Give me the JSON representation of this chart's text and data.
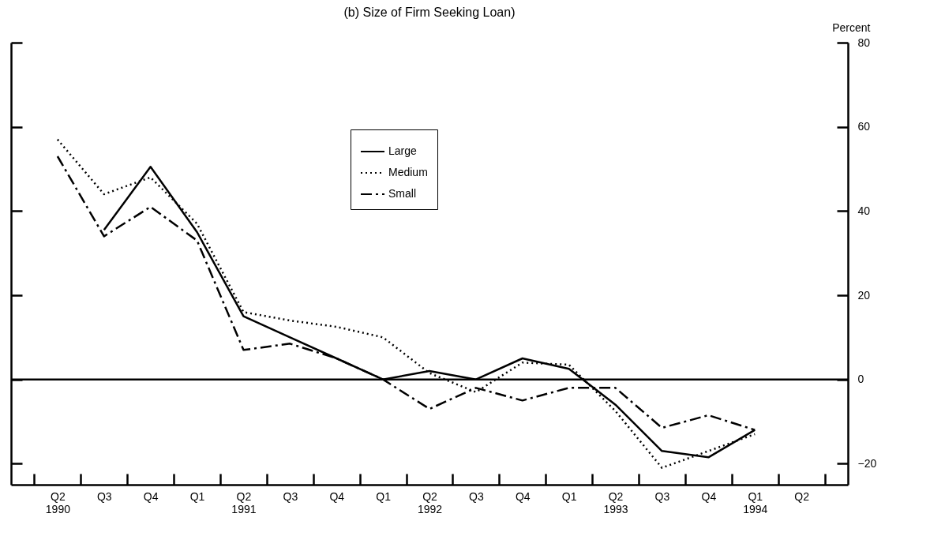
{
  "chart_data": {
    "type": "line",
    "title": "(b) Size of Firm Seeking Loan)",
    "ylabel": "Percent",
    "categories": [
      "Q2 1990",
      "Q3",
      "Q4",
      "Q1",
      "Q2 1991",
      "Q3",
      "Q4",
      "Q1",
      "Q2 1992",
      "Q3",
      "Q4",
      "Q1",
      "Q2 1993",
      "Q3",
      "Q4",
      "Q1 1994",
      "Q2"
    ],
    "series": [
      {
        "name": "Large",
        "color": "#000000",
        "line_style": "solid",
        "values": [
          null,
          35.5,
          50.5,
          35,
          15,
          10,
          5,
          0,
          2,
          0,
          5,
          2.5,
          -6,
          -17,
          -18.5,
          -12,
          null
        ]
      },
      {
        "name": "Medium",
        "color": "#000000",
        "line_style": "dotted",
        "values": [
          57,
          44,
          48,
          37,
          16,
          14,
          12.5,
          10,
          1.5,
          -3,
          4,
          3.5,
          -7.5,
          -21,
          -17,
          -13,
          null
        ]
      },
      {
        "name": "Small",
        "color": "#000000",
        "line_style": "dashdot",
        "values": [
          53,
          34,
          41,
          33,
          7,
          8.5,
          5,
          0,
          -7,
          -2,
          -5,
          -2,
          -2,
          -11.5,
          -8.5,
          -12,
          null
        ]
      }
    ],
    "ylim": [
      -25,
      80
    ],
    "yticks": [
      -20,
      0,
      20,
      40,
      60,
      80
    ],
    "ref_lines": [
      {
        "axis": "y",
        "value": 0,
        "color": "#000000",
        "line_style": "solid"
      }
    ],
    "legend": "top",
    "grid": false
  }
}
